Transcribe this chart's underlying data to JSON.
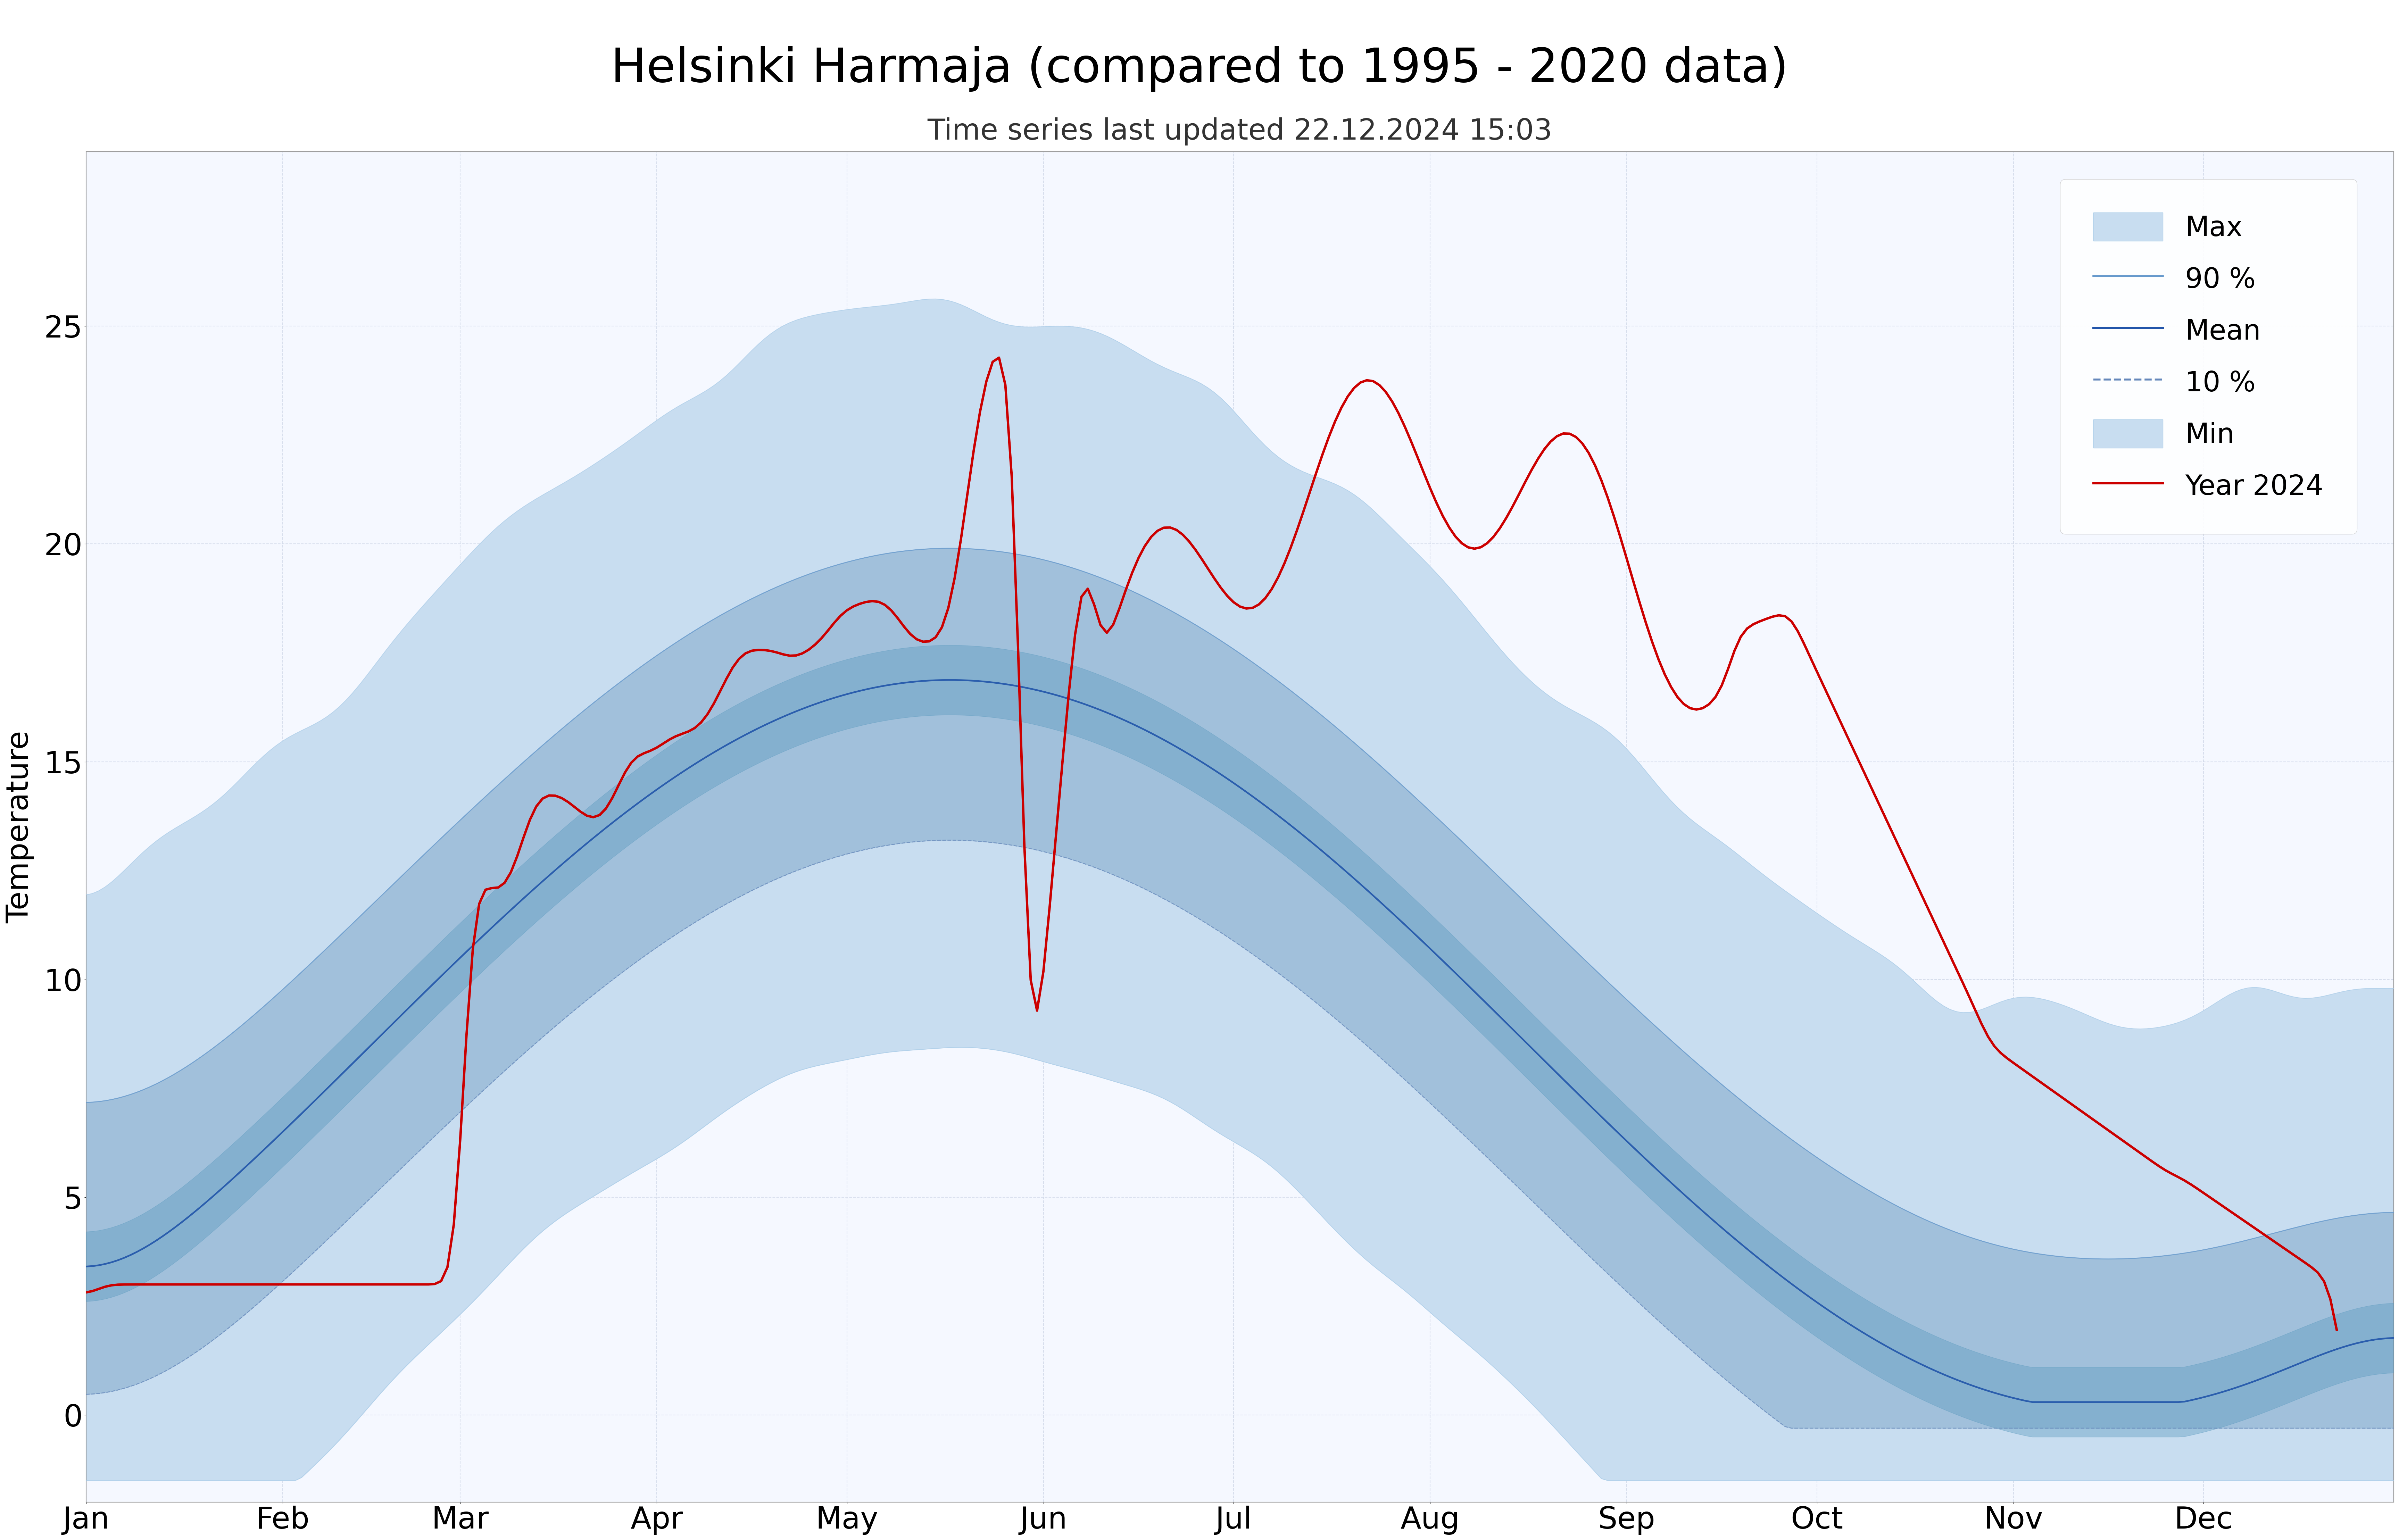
{
  "title": "Helsinki Harmaja (compared to 1995 - 2020 data)",
  "subtitle": "Time series last updated 22.12.2024 15:03",
  "ylabel": "Temperature",
  "xlabel": "",
  "background_color": "#ffffff",
  "plot_bg_color": "#f5f8ff",
  "grid_color": "#d0d8e8",
  "title_fontsize": 28,
  "subtitle_fontsize": 20,
  "axis_fontsize": 18,
  "tick_fontsize": 18,
  "legend_fontsize": 18,
  "ylim": [
    -2,
    29
  ],
  "yticks": [
    0,
    5,
    10,
    15,
    20,
    25
  ],
  "color_max_fill": "#c8ddf0",
  "color_90_fill": "#9bbbd8",
  "color_mean_fill": "#5a9abf",
  "color_max_line": "#aacce8",
  "color_90_line": "#6699cc",
  "color_mean_line": "#2255aa",
  "color_10_line": "#6688bb",
  "color_min_line": "#aacce8",
  "color_year": "#cc0000",
  "month_labels": [
    "Jan",
    "Feb",
    "Mar",
    "Apr",
    "May",
    "Jun",
    "Jul",
    "Aug",
    "Sep",
    "Oct",
    "Nov",
    "Dec"
  ],
  "month_positions": [
    0,
    31,
    59,
    90,
    120,
    151,
    181,
    212,
    243,
    273,
    304,
    334
  ]
}
